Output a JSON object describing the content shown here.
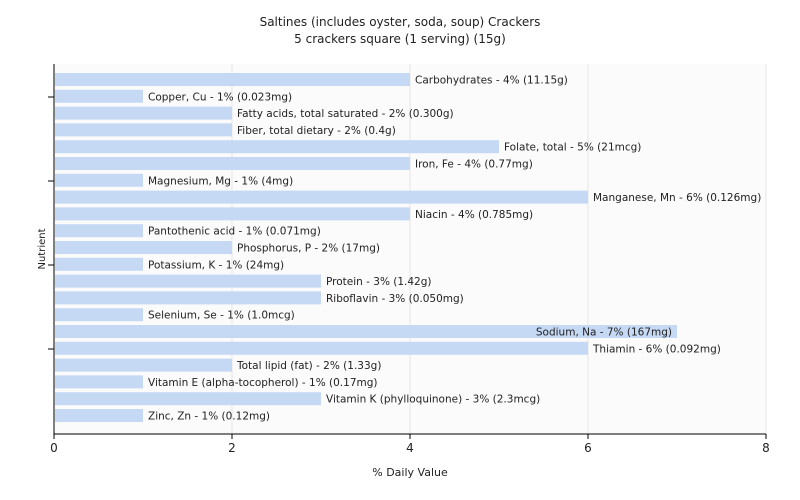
{
  "chart_data": {
    "type": "bar",
    "orientation": "horizontal",
    "title": "Saltines (includes oyster, soda, soup) Crackers",
    "subtitle": "5 crackers square (1 serving) (15g)",
    "xlabel": "% Daily Value",
    "ylabel": "Nutrient",
    "xlim": [
      0,
      8
    ],
    "xticks": [
      "0",
      "2",
      "4",
      "6",
      "8"
    ],
    "grid": true,
    "bar_color": "#c5d9f5",
    "bars": [
      {
        "value": 4,
        "label": "Carbohydrates - 4% (11.15g)"
      },
      {
        "value": 1,
        "label": "Copper, Cu - 1% (0.023mg)"
      },
      {
        "value": 2,
        "label": "Fatty acids, total saturated - 2% (0.300g)"
      },
      {
        "value": 2,
        "label": "Fiber, total dietary - 2% (0.4g)"
      },
      {
        "value": 5,
        "label": "Folate, total - 5% (21mcg)"
      },
      {
        "value": 4,
        "label": "Iron, Fe - 4% (0.77mg)"
      },
      {
        "value": 1,
        "label": "Magnesium, Mg - 1% (4mg)"
      },
      {
        "value": 6,
        "label": "Manganese, Mn - 6% (0.126mg)"
      },
      {
        "value": 4,
        "label": "Niacin - 4% (0.785mg)"
      },
      {
        "value": 1,
        "label": "Pantothenic acid - 1% (0.071mg)"
      },
      {
        "value": 2,
        "label": "Phosphorus, P - 2% (17mg)"
      },
      {
        "value": 1,
        "label": "Potassium, K - 1% (24mg)"
      },
      {
        "value": 3,
        "label": "Protein - 3% (1.42g)"
      },
      {
        "value": 3,
        "label": "Riboflavin - 3% (0.050mg)"
      },
      {
        "value": 1,
        "label": "Selenium, Se - 1% (1.0mcg)"
      },
      {
        "value": 7,
        "label": "Sodium, Na - 7% (167mg)"
      },
      {
        "value": 6,
        "label": "Thiamin - 6% (0.092mg)"
      },
      {
        "value": 2,
        "label": "Total lipid (fat) - 2% (1.33g)"
      },
      {
        "value": 1,
        "label": "Vitamin E (alpha-tocopherol) - 1% (0.17mg)"
      },
      {
        "value": 3,
        "label": "Vitamin K (phylloquinone) - 3% (2.3mcg)"
      },
      {
        "value": 1,
        "label": "Zinc, Zn - 1% (0.12mg)"
      }
    ]
  }
}
